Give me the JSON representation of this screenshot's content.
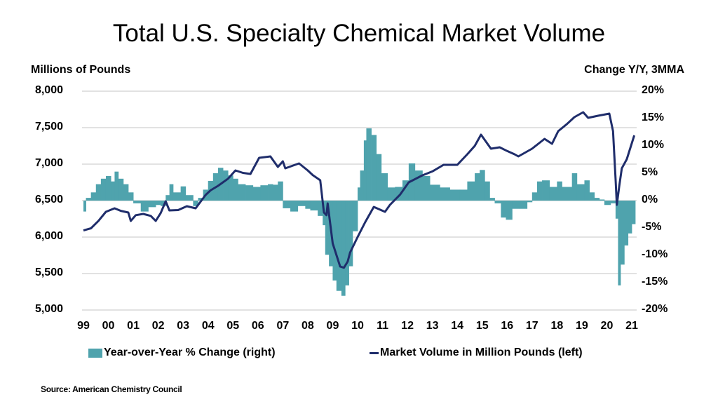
{
  "chart_data": {
    "type": "bar+line",
    "title": "Total U.S. Specialty Chemical Market Volume",
    "ylabel_left": "Millions of Pounds",
    "ylabel_right": "Change Y/Y, 3MMA",
    "ylim_left": [
      5000,
      8000
    ],
    "ylim_right": [
      -20,
      20
    ],
    "yticks_left": [
      "8,000",
      "7,500",
      "7,000",
      "6,500",
      "6,000",
      "5,500",
      "5,000"
    ],
    "yticks_right": [
      "20%",
      "15%",
      "10%",
      "5%",
      "0%",
      "-5%",
      "-10%",
      "-15%",
      "-20%"
    ],
    "xticks": [
      "99",
      "00",
      "01",
      "02",
      "03",
      "04",
      "05",
      "06",
      "07",
      "08",
      "09",
      "10",
      "11",
      "12",
      "13",
      "14",
      "15",
      "16",
      "17",
      "18",
      "19",
      "20",
      "21"
    ],
    "xlim": [
      1999,
      2021
    ],
    "grid": "horizontal",
    "legend_placement": "bottom",
    "colors": {
      "bars": "#4fa3ad",
      "line": "#1f2d6b",
      "grid": "#d9d9d9"
    },
    "series": [
      {
        "name": "Year-over-Year % Change (right)",
        "type": "bar",
        "axis": "right",
        "x": [
          1999.0,
          1999.1,
          1999.3,
          1999.5,
          1999.7,
          1999.9,
          2000.1,
          2000.25,
          2000.4,
          2000.6,
          2000.8,
          2001.0,
          2001.3,
          2001.6,
          2001.9,
          2002.1,
          2002.3,
          2002.45,
          2002.6,
          2002.9,
          2003.1,
          2003.4,
          2003.6,
          2003.8,
          2004.0,
          2004.2,
          2004.4,
          2004.6,
          2004.8,
          2005.0,
          2005.2,
          2005.5,
          2005.8,
          2006.1,
          2006.4,
          2006.6,
          2006.8,
          2007.0,
          2007.3,
          2007.6,
          2007.9,
          2008.1,
          2008.4,
          2008.6,
          2008.7,
          2008.85,
          2009.0,
          2009.15,
          2009.35,
          2009.5,
          2009.65,
          2009.8,
          2010.0,
          2010.1,
          2010.25,
          2010.35,
          2010.55,
          2010.75,
          2010.95,
          2011.2,
          2011.5,
          2011.8,
          2012.05,
          2012.3,
          2012.6,
          2012.9,
          2013.3,
          2013.7,
          2014.1,
          2014.4,
          2014.7,
          2014.9,
          2015.1,
          2015.3,
          2015.5,
          2015.75,
          2015.95,
          2016.2,
          2016.5,
          2016.8,
          2017.0,
          2017.2,
          2017.4,
          2017.7,
          2018.0,
          2018.2,
          2018.4,
          2018.6,
          2018.8,
          2019.1,
          2019.3,
          2019.5,
          2019.7,
          2019.9,
          2020.15,
          2020.35,
          2020.45,
          2020.55,
          2020.7,
          2020.85,
          2021.0
        ],
        "values": [
          -2,
          0.5,
          1.5,
          3,
          4,
          4.5,
          3.5,
          5.3,
          4,
          3,
          1.5,
          -0.5,
          -2,
          -1.2,
          -0.8,
          -1,
          1,
          3,
          1.5,
          2.6,
          1,
          -1,
          0.5,
          2,
          3.6,
          5,
          6,
          5.5,
          4.6,
          4,
          3,
          2.8,
          2.5,
          2.8,
          3,
          2.9,
          3.5,
          -1.4,
          -2,
          -1,
          -1.5,
          -1.8,
          -2.8,
          -4.5,
          -9.9,
          -12,
          -14.6,
          -16.5,
          -17.4,
          -15.5,
          -12,
          -5.6,
          2.4,
          5.5,
          11,
          13.2,
          12,
          8.5,
          5,
          2.4,
          2.5,
          3.7,
          6.8,
          5.5,
          4.5,
          2.9,
          2.4,
          2,
          2,
          3.5,
          5,
          5.6,
          3.5,
          0.5,
          -0.5,
          -3.1,
          -3.5,
          -1.5,
          -1.5,
          -0.3,
          1.5,
          3.5,
          3.7,
          2.5,
          3.5,
          2.5,
          2.5,
          5,
          3,
          3.7,
          1.5,
          0.5,
          0.2,
          -0.8,
          -0.5,
          -3.3,
          -15.5,
          -11.7,
          -8.2,
          -6,
          -4.3
        ]
      },
      {
        "name": "Market Volume in Million Pounds (left)",
        "type": "line",
        "axis": "left",
        "x": [
          1999.0,
          1999.3,
          1999.6,
          1999.9,
          2000.25,
          2000.5,
          2000.8,
          2000.9,
          2001.1,
          2001.4,
          2001.7,
          2001.9,
          2002.1,
          2002.3,
          2002.45,
          2002.8,
          2003.15,
          2003.5,
          2003.9,
          2004.1,
          2004.4,
          2004.8,
          2005.1,
          2005.4,
          2005.7,
          2006.05,
          2006.5,
          2006.8,
          2007.0,
          2007.1,
          2007.4,
          2007.65,
          2008.0,
          2008.2,
          2008.5,
          2008.65,
          2008.75,
          2008.8,
          2009.0,
          2009.3,
          2009.45,
          2009.6,
          2009.7,
          2010.0,
          2010.3,
          2010.65,
          2011.1,
          2011.3,
          2011.7,
          2012.05,
          2012.6,
          2013.0,
          2013.45,
          2014.0,
          2014.4,
          2014.7,
          2014.95,
          2015.35,
          2015.7,
          2016.0,
          2016.3,
          2016.45,
          2017.0,
          2017.5,
          2017.8,
          2018.05,
          2018.4,
          2018.7,
          2019.05,
          2019.25,
          2019.65,
          2020.1,
          2020.25,
          2020.35,
          2020.4,
          2020.5,
          2020.6,
          2020.8,
          2021.1
        ],
        "values": [
          6090,
          6120,
          6220,
          6346,
          6394,
          6360,
          6337,
          6221,
          6300,
          6317,
          6290,
          6221,
          6330,
          6490,
          6365,
          6370,
          6423,
          6394,
          6577,
          6640,
          6702,
          6800,
          6913,
          6880,
          6865,
          7087,
          7106,
          6962,
          7038,
          6942,
          6980,
          7010,
          6913,
          6850,
          6779,
          6337,
          6300,
          6462,
          5913,
          5596,
          5580,
          5663,
          5788,
          6000,
          6202,
          6413,
          6346,
          6442,
          6580,
          6750,
          6846,
          6900,
          6990,
          6990,
          7135,
          7250,
          7404,
          7212,
          7231,
          7180,
          7135,
          7106,
          7212,
          7346,
          7279,
          7452,
          7550,
          7644,
          7712,
          7635,
          7663,
          7692,
          7452,
          6800,
          6442,
          6700,
          6942,
          7067,
          7394
        ]
      }
    ],
    "source": "Source: American Chemistry Council"
  }
}
